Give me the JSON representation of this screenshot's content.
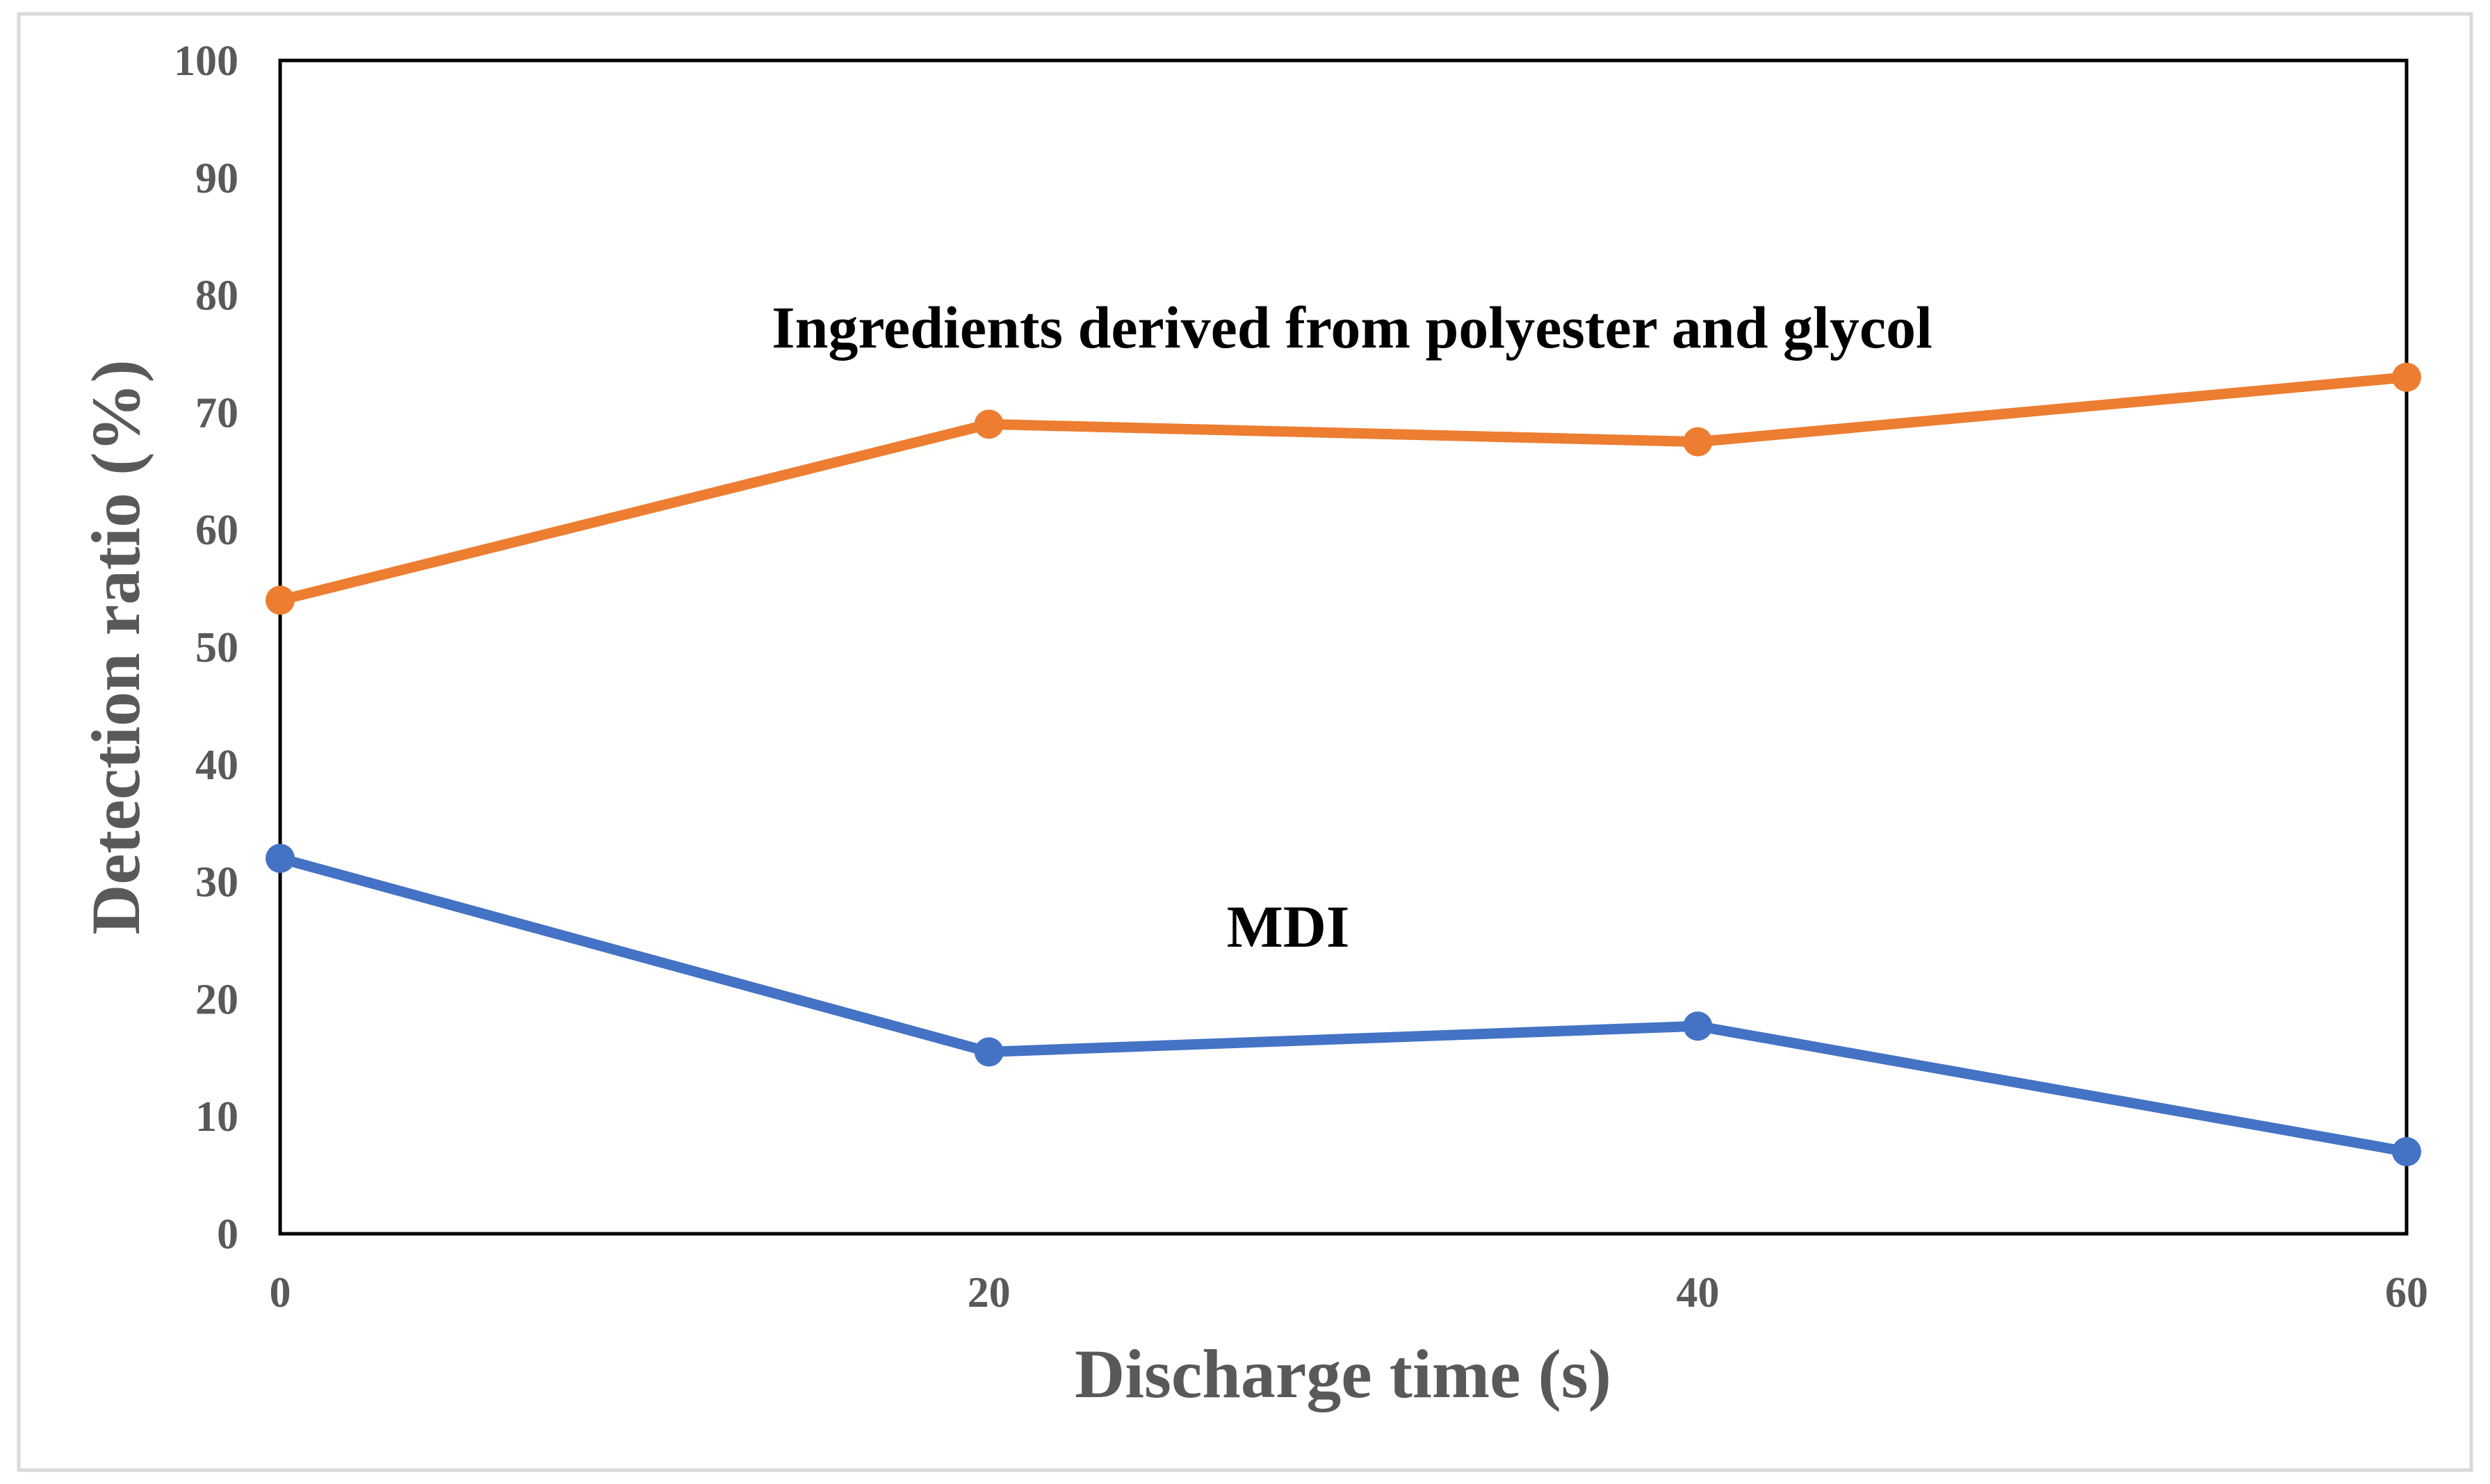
{
  "chart_data": {
    "type": "line",
    "title": "",
    "xlabel": "Discharge time (s)",
    "ylabel": "Detection ratio (%)",
    "x": [
      0,
      20,
      40,
      60
    ],
    "xlim": [
      0,
      60
    ],
    "ylim": [
      0,
      100
    ],
    "xticks": [
      0,
      20,
      40,
      60
    ],
    "yticks": [
      0,
      10,
      20,
      30,
      40,
      50,
      60,
      70,
      80,
      90,
      100
    ],
    "grid": false,
    "series": [
      {
        "name": "Ingredients derived from polyester and glycol",
        "color": "#ED7D31",
        "values": [
          54,
          69,
          67.5,
          73
        ]
      },
      {
        "name": "MDI",
        "color": "#4472C4",
        "values": [
          32,
          15.5,
          17.7,
          7
        ]
      }
    ],
    "annotations": [
      {
        "text": "Ingredients derived from polyester and glycol",
        "series": 0
      },
      {
        "text": "MDI",
        "series": 1
      }
    ]
  }
}
